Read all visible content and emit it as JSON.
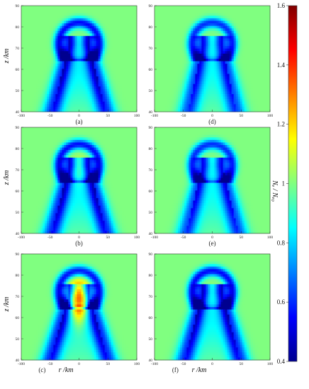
{
  "chart_data": {
    "type": "heatmap",
    "xlabel": "r /km",
    "ylabel": "z /km",
    "xlim": [
      -100,
      100
    ],
    "ylim": [
      40,
      90
    ],
    "x_ticks": [
      "-100",
      "-50",
      "0",
      "50",
      "100"
    ],
    "y_ticks": [
      "40",
      "50",
      "60",
      "70",
      "80",
      "90"
    ],
    "colorbar": {
      "label": "Nₑ / Nₑ₀",
      "range": [
        0.4,
        1.6
      ],
      "ticks": [
        "0.4",
        "0.6",
        "0.8",
        "1",
        "1.2",
        "1.4",
        "1.6"
      ],
      "colors": [
        "#00008f",
        "#0000ff",
        "#0080ff",
        "#00ffff",
        "#80ff80",
        "#ffff00",
        "#ff8000",
        "#ff0000",
        "#800000"
      ]
    },
    "panels": [
      {
        "label": "(a)",
        "min_ratio": 0.55,
        "max_ratio": 1.0,
        "cap_z": 72,
        "cone_width": 0.55,
        "core": "none"
      },
      {
        "label": "(b)",
        "min_ratio": 0.55,
        "max_ratio": 1.08,
        "cap_z": 72,
        "cone_width": 0.6,
        "core": "mild"
      },
      {
        "label": "(c)",
        "min_ratio": 0.55,
        "max_ratio": 1.5,
        "cap_z": 72,
        "cone_width": 0.7,
        "core": "strong"
      },
      {
        "label": "(d)",
        "min_ratio": 0.6,
        "max_ratio": 1.0,
        "cap_z": 72,
        "cone_width": 0.35,
        "core": "none"
      },
      {
        "label": "(e)",
        "min_ratio": 0.6,
        "max_ratio": 1.0,
        "cap_z": 72,
        "cone_width": 0.5,
        "core": "none"
      },
      {
        "label": "(f)",
        "min_ratio": 0.55,
        "max_ratio": 1.02,
        "cap_z": 72,
        "cone_width": 0.6,
        "core": "faint"
      }
    ]
  }
}
